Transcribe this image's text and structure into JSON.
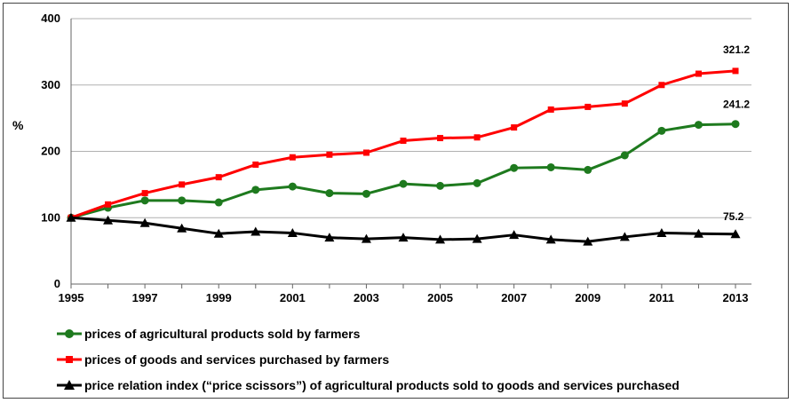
{
  "chart_data": {
    "type": "line",
    "ylabel": "%",
    "xlabel": "",
    "ylim": [
      0,
      400
    ],
    "yticks": [
      "0",
      "100",
      "200",
      "300",
      "400"
    ],
    "xlim": [
      1995,
      2013
    ],
    "xticks": [
      "1995",
      "1997",
      "1999",
      "2001",
      "2003",
      "2005",
      "2007",
      "2009",
      "2011",
      "2013"
    ],
    "x": [
      1995,
      1996,
      1997,
      1998,
      1999,
      2000,
      2001,
      2002,
      2003,
      2004,
      2005,
      2006,
      2007,
      2008,
      2009,
      2010,
      2011,
      2012,
      2013
    ],
    "grid": "horizontal",
    "legend_position": "bottom",
    "series": [
      {
        "name": "prices of agricultural products sold by farmers",
        "color": "#1e7a1e",
        "marker": "circle",
        "values": [
          100,
          115,
          126,
          126,
          123,
          142,
          147,
          137,
          136,
          151,
          148,
          152,
          175,
          176,
          172,
          194,
          231,
          240,
          241.2
        ],
        "end_label": "241.2"
      },
      {
        "name": "prices of goods and services purchased by farmers",
        "color": "#ff0000",
        "marker": "square",
        "values": [
          100,
          120,
          137,
          150,
          161,
          180,
          191,
          195,
          198,
          216,
          220,
          221,
          236,
          263,
          267,
          272,
          300,
          317,
          321.2
        ],
        "end_label": "321.2"
      },
      {
        "name": "price relation index (“price scissors”) of agricultural products sold to goods and services purchased",
        "color": "#000000",
        "marker": "triangle",
        "values": [
          100,
          96,
          92,
          84,
          76,
          79,
          77,
          70,
          68,
          70,
          67,
          68,
          74,
          67,
          64,
          71,
          77,
          76,
          75.2
        ],
        "end_label": "75.2"
      }
    ]
  }
}
